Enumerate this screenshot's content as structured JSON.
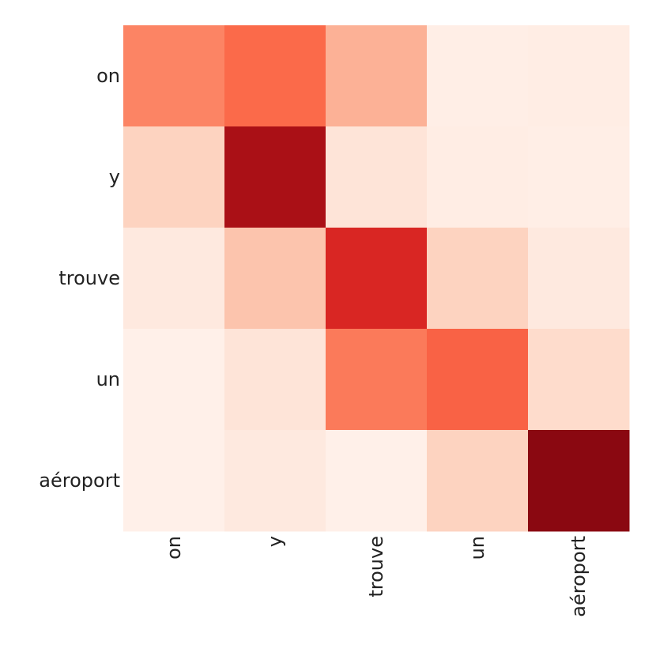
{
  "chart_data": {
    "type": "heatmap",
    "title": "",
    "xlabel": "",
    "ylabel": "",
    "x_labels": [
      "on",
      "y",
      "trouve",
      "un",
      "aéroport"
    ],
    "y_labels": [
      "on",
      "y",
      "trouve",
      "un",
      "aéroport"
    ],
    "values": [
      [
        0.42,
        0.5,
        0.28,
        0.04,
        0.05
      ],
      [
        0.17,
        0.86,
        0.1,
        0.05,
        0.04
      ],
      [
        0.07,
        0.22,
        0.7,
        0.17,
        0.07
      ],
      [
        0.03,
        0.1,
        0.45,
        0.52,
        0.14
      ],
      [
        0.03,
        0.07,
        0.03,
        0.17,
        0.93
      ]
    ],
    "value_range": [
      0,
      1
    ],
    "colormap": "Reds",
    "colormap_stops": [
      "#fff5f0",
      "#fee0d2",
      "#fcbba1",
      "#fc9272",
      "#fb6a4a",
      "#ef3b2c",
      "#cb181d",
      "#a50f15",
      "#67000d"
    ],
    "grid": false,
    "legend": "none"
  }
}
